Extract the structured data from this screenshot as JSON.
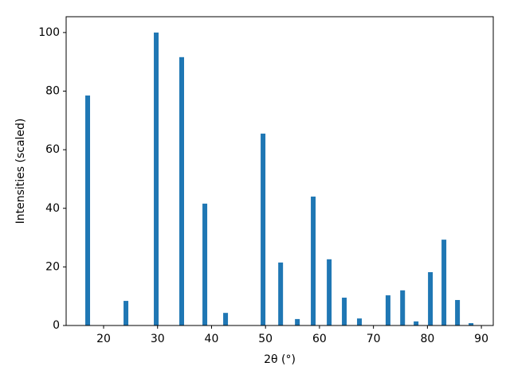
{
  "chart_data": {
    "type": "bar",
    "xlabel": "2θ (°)",
    "ylabel": "Intensities (scaled)",
    "x": [
      17.05,
      24.14,
      29.75,
      34.47,
      38.76,
      42.6,
      49.54,
      52.8,
      55.9,
      58.84,
      61.8,
      64.6,
      67.4,
      72.7,
      75.4,
      77.9,
      80.55,
      83.06,
      85.57,
      88.08
    ],
    "values": [
      78.5,
      8.4,
      100,
      91.6,
      41.6,
      4.3,
      65.5,
      21.5,
      2.2,
      44,
      22.6,
      9.5,
      2.4,
      10.3,
      12,
      1.4,
      18.2,
      29.3,
      8.7,
      0.8
    ],
    "color": "#1f77b4",
    "xlim": [
      13.06,
      92.2
    ],
    "ylim": [
      0,
      105.4
    ],
    "xticks": [
      20,
      30,
      40,
      50,
      60,
      70,
      80,
      90
    ],
    "yticks": [
      0,
      20,
      40,
      60,
      80,
      100
    ]
  }
}
